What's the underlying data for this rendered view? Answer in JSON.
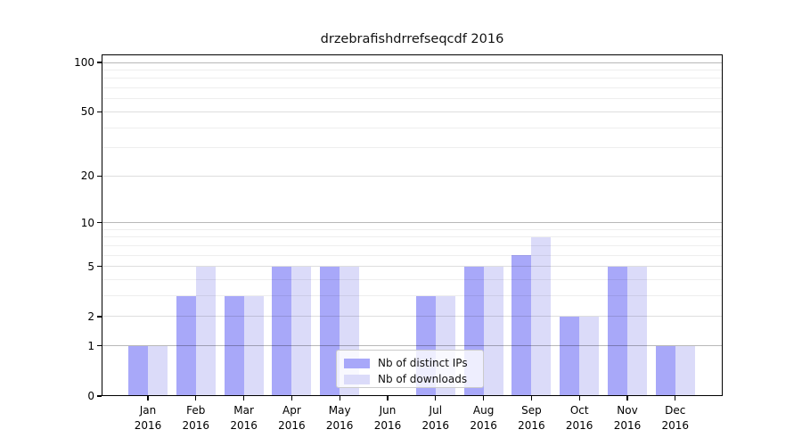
{
  "chart_data": {
    "type": "bar",
    "title": "drzebrafishdrrefseqcdf 2016",
    "xlabel": "",
    "ylabel": "",
    "year": "2016",
    "categories": [
      "Jan",
      "Feb",
      "Mar",
      "Apr",
      "May",
      "Jun",
      "Jul",
      "Aug",
      "Sep",
      "Oct",
      "Nov",
      "Dec"
    ],
    "series": [
      {
        "name": "Nb of distinct IPs",
        "color": "#a8a8f9",
        "values": [
          1,
          3,
          3,
          5,
          5,
          0,
          3,
          5,
          6,
          2,
          5,
          1
        ]
      },
      {
        "name": "Nb of downloads",
        "color": "#dbdbf9",
        "values": [
          1,
          5,
          3,
          5,
          5,
          0,
          3,
          5,
          8,
          2,
          5,
          1
        ]
      }
    ],
    "yscale": "log1p",
    "ylim": [
      0,
      112
    ],
    "yticks_labeled": [
      0,
      1,
      2,
      5,
      10,
      20,
      50,
      100
    ],
    "gridlines_dark": [
      1,
      10,
      100
    ],
    "gridlines_mid": [
      2,
      5,
      20,
      50
    ],
    "gridlines_minor": [
      3,
      4,
      6,
      7,
      8,
      9,
      30,
      40,
      60,
      70,
      80,
      90
    ],
    "grid": true,
    "legend_position": "lower center"
  }
}
